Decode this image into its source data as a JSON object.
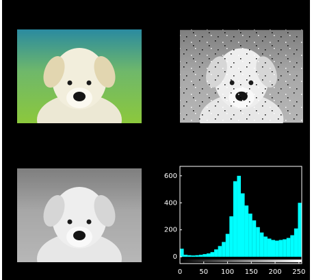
{
  "histogram": {
    "type": "histogram",
    "bins": [
      0,
      8,
      16,
      24,
      32,
      40,
      48,
      56,
      64,
      72,
      80,
      88,
      96,
      104,
      112,
      120,
      128,
      136,
      144,
      152,
      160,
      168,
      176,
      184,
      192,
      200,
      208,
      216,
      224,
      232,
      240,
      248,
      256
    ],
    "counts": [
      60,
      15,
      12,
      10,
      12,
      15,
      20,
      25,
      35,
      55,
      80,
      110,
      170,
      300,
      560,
      600,
      470,
      380,
      320,
      270,
      220,
      180,
      150,
      135,
      125,
      120,
      125,
      130,
      140,
      160,
      210,
      400
    ],
    "color": "#00ffff",
    "xlim": [
      0,
      256
    ],
    "xticks": [
      0,
      50,
      100,
      150,
      200,
      250
    ],
    "ylim": [
      -50,
      670
    ],
    "yticks": [
      0,
      200,
      400,
      600
    ]
  }
}
